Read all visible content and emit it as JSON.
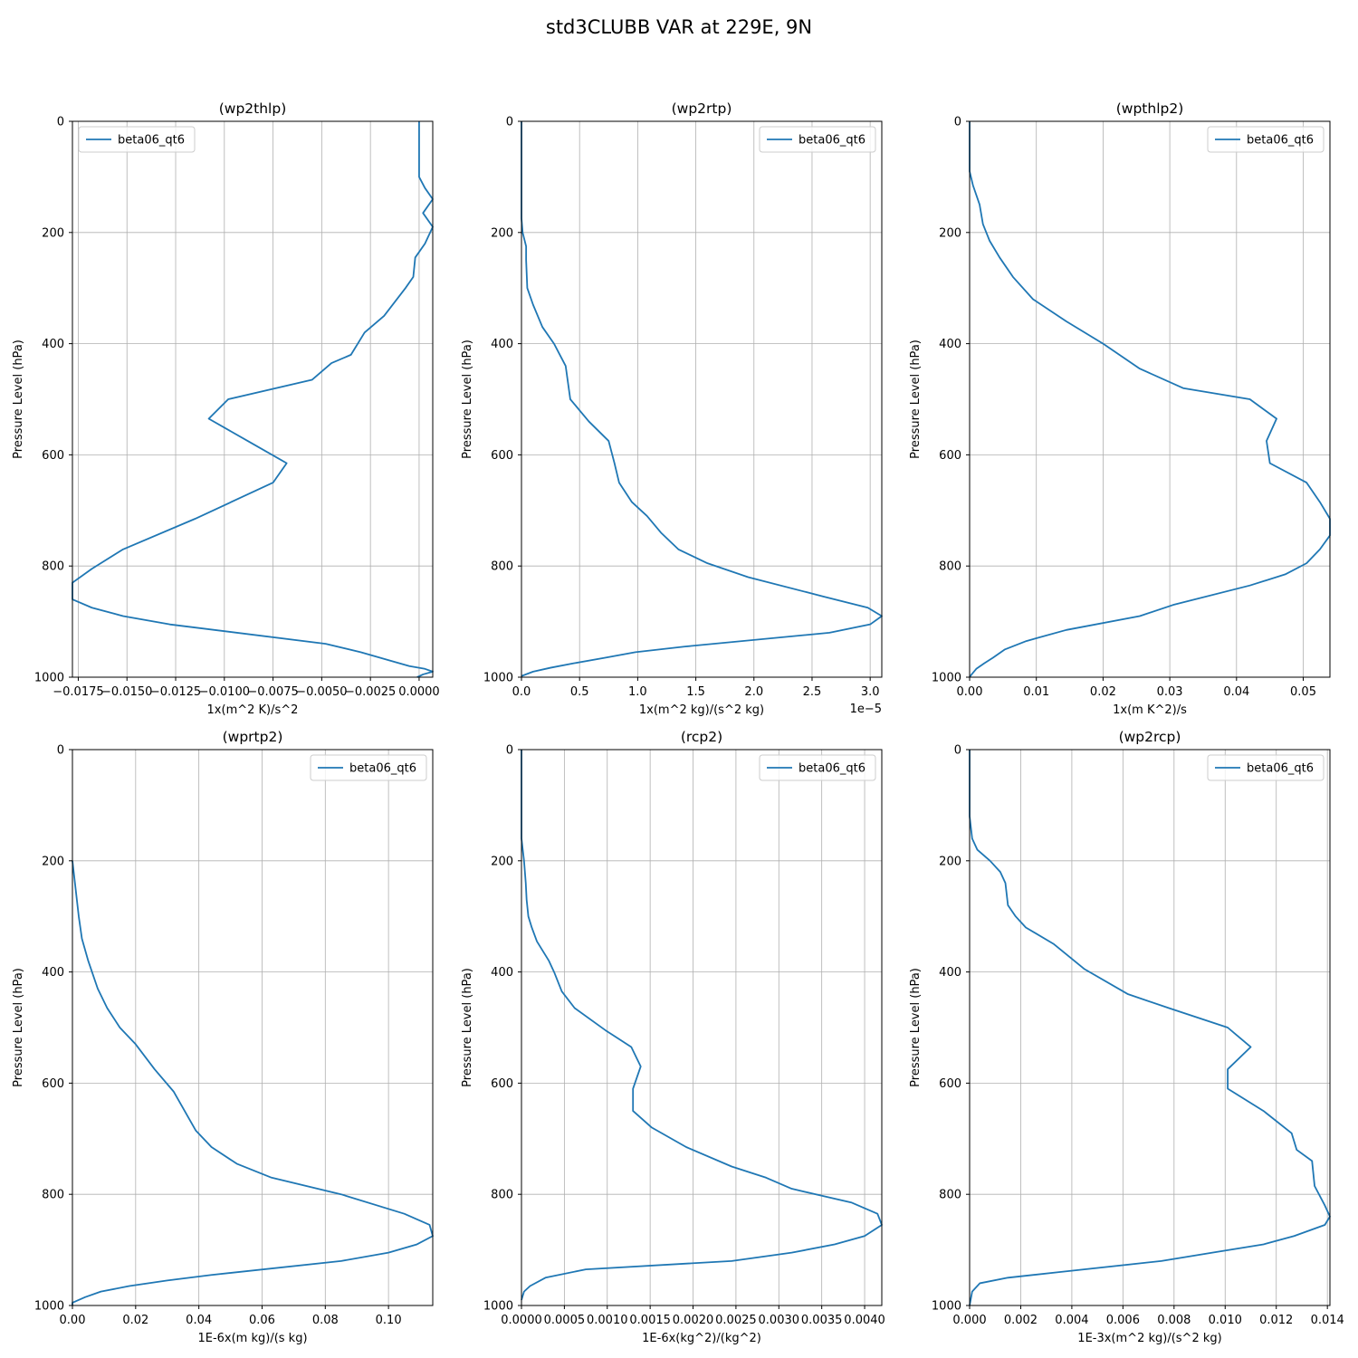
{
  "figure_title": "std3CLUBB VAR at 229E, 9N",
  "colors": {
    "line": "#1f77b4",
    "grid": "#b0b0b0",
    "axes": "#000000"
  },
  "chart_data": [
    {
      "type": "line",
      "title": "(wp2thlp)",
      "xlabel": "1x(m^2 K)/s^2",
      "ylabel": "Pressure Level (hPa)",
      "xlim": [
        -0.0178,
        0.0007
      ],
      "ylim": [
        1000,
        0
      ],
      "xticks": [
        -0.0175,
        -0.015,
        -0.0125,
        -0.01,
        -0.0075,
        -0.005,
        -0.0025,
        0.0
      ],
      "xtick_labels": [
        "−0.0175",
        "−0.0150",
        "−0.0125",
        "−0.0100",
        "−0.0075",
        "−0.0050",
        "−0.0025",
        "0.0000"
      ],
      "yticks": [
        0,
        200,
        400,
        600,
        800,
        1000
      ],
      "ytick_labels": [
        "0",
        "200",
        "400",
        "600",
        "800",
        "1000"
      ],
      "offset_label": "",
      "legend": "upper left",
      "grid": true,
      "series": [
        {
          "name": "beta06_qt6",
          "x": [
            0.0,
            0.0,
            0.0,
            0.0003,
            0.0007,
            0.0002,
            0.0007,
            0.0003,
            -0.0002,
            -0.0003,
            -0.0007,
            -0.0018,
            -0.0028,
            -0.0035,
            -0.0045,
            -0.0055,
            -0.0098,
            -0.0108,
            -0.0088,
            -0.0068,
            -0.0075,
            -0.0115,
            -0.0152,
            -0.0168,
            -0.0178,
            -0.0178,
            -0.0168,
            -0.0152,
            -0.0128,
            -0.0048,
            -0.003,
            -0.0015,
            -0.0005,
            0.0003,
            0.0007,
            0.0002,
            -0.0001
          ],
          "y": [
            0,
            50,
            100,
            120,
            140,
            165,
            190,
            220,
            245,
            280,
            300,
            350,
            380,
            420,
            435,
            465,
            500,
            535,
            575,
            615,
            650,
            715,
            770,
            805,
            830,
            860,
            875,
            890,
            905,
            940,
            955,
            970,
            980,
            985,
            990,
            995,
            1000
          ]
        }
      ]
    },
    {
      "type": "line",
      "title": "(wp2rtp)",
      "xlabel": "1x(m^2 kg)/(s^2 kg)",
      "ylabel": "Pressure Level (hPa)",
      "xlim": [
        0,
        3.1
      ],
      "ylim": [
        1000,
        0
      ],
      "xticks": [
        0,
        0.5,
        1.0,
        1.5,
        2.0,
        2.5,
        3.0
      ],
      "xtick_labels": [
        "0.0",
        "0.5",
        "1.0",
        "1.5",
        "2.0",
        "2.5",
        "3.0"
      ],
      "yticks": [
        0,
        200,
        400,
        600,
        800,
        1000
      ],
      "ytick_labels": [
        "0",
        "200",
        "400",
        "600",
        "800",
        "1000"
      ],
      "offset_label": "1e−5",
      "legend": "upper right",
      "grid": true,
      "series": [
        {
          "name": "beta06_qt6",
          "x": [
            0.0,
            0.0,
            0.0,
            0.01,
            0.04,
            0.04,
            0.05,
            0.1,
            0.18,
            0.28,
            0.38,
            0.42,
            0.58,
            0.75,
            0.8,
            0.84,
            0.95,
            1.08,
            1.2,
            1.35,
            1.6,
            1.95,
            2.6,
            2.98,
            3.1,
            3.0,
            2.65,
            1.4,
            0.98,
            0.72,
            0.45,
            0.25,
            0.1,
            0.0
          ],
          "y": [
            0,
            100,
            175,
            200,
            225,
            250,
            300,
            330,
            370,
            400,
            440,
            500,
            540,
            575,
            615,
            650,
            685,
            710,
            740,
            770,
            795,
            820,
            855,
            875,
            890,
            905,
            920,
            945,
            955,
            965,
            975,
            983,
            990,
            998
          ]
        }
      ]
    },
    {
      "type": "line",
      "title": "(wpthlp2)",
      "xlabel": "1x(m K^2)/s",
      "ylabel": "Pressure Level (hPa)",
      "xlim": [
        0,
        0.054
      ],
      "ylim": [
        1000,
        0
      ],
      "xticks": [
        0,
        0.01,
        0.02,
        0.03,
        0.04,
        0.05
      ],
      "xtick_labels": [
        "0.00",
        "0.01",
        "0.02",
        "0.03",
        "0.04",
        "0.05"
      ],
      "yticks": [
        0,
        200,
        400,
        600,
        800,
        1000
      ],
      "ytick_labels": [
        "0",
        "200",
        "400",
        "600",
        "800",
        "1000"
      ],
      "offset_label": "",
      "legend": "upper right",
      "grid": true,
      "series": [
        {
          "name": "beta06_qt6",
          "x": [
            0.0,
            0.0,
            0.0005,
            0.0015,
            0.002,
            0.003,
            0.0045,
            0.0065,
            0.0095,
            0.0145,
            0.02,
            0.0255,
            0.032,
            0.042,
            0.046,
            0.0445,
            0.045,
            0.0505,
            0.0525,
            0.054,
            0.054,
            0.0525,
            0.0505,
            0.0473,
            0.042,
            0.0305,
            0.0255,
            0.0145,
            0.0085,
            0.0053,
            0.0035,
            0.0022,
            0.001,
            0.0003,
            0.0
          ],
          "y": [
            0,
            90,
            115,
            150,
            185,
            215,
            245,
            280,
            320,
            360,
            400,
            445,
            480,
            500,
            535,
            575,
            615,
            650,
            685,
            715,
            745,
            770,
            795,
            815,
            835,
            870,
            890,
            915,
            935,
            950,
            965,
            975,
            985,
            995,
            1000
          ]
        }
      ]
    },
    {
      "type": "line",
      "title": "(wprtp2)",
      "xlabel": "1E-6x(m kg)/(s kg)",
      "ylabel": "Pressure Level (hPa)",
      "xlim": [
        0,
        0.114
      ],
      "ylim": [
        1000,
        0
      ],
      "xticks": [
        0,
        0.02,
        0.04,
        0.06,
        0.08,
        0.1
      ],
      "xtick_labels": [
        "0.00",
        "0.02",
        "0.04",
        "0.06",
        "0.08",
        "0.10"
      ],
      "yticks": [
        0,
        200,
        400,
        600,
        800,
        1000
      ],
      "ytick_labels": [
        "0",
        "200",
        "400",
        "600",
        "800",
        "1000"
      ],
      "offset_label": "",
      "legend": "upper right",
      "grid": true,
      "series": [
        {
          "name": "beta06_qt6",
          "x": [
            0.0,
            0.001,
            0.002,
            0.003,
            0.005,
            0.008,
            0.011,
            0.015,
            0.02,
            0.026,
            0.032,
            0.039,
            0.044,
            0.052,
            0.063,
            0.085,
            0.105,
            0.113,
            0.114,
            0.109,
            0.1,
            0.085,
            0.044,
            0.03,
            0.018,
            0.009,
            0.004,
            0.0,
            0.0
          ],
          "y": [
            200,
            250,
            300,
            340,
            380,
            430,
            465,
            500,
            530,
            575,
            615,
            685,
            715,
            745,
            770,
            800,
            835,
            855,
            875,
            890,
            905,
            920,
            945,
            955,
            965,
            975,
            985,
            995,
            1000
          ]
        }
      ]
    },
    {
      "type": "line",
      "title": "(rcp2)",
      "xlabel": "1E-6x(kg^2)/(kg^2)",
      "ylabel": "Pressure Level (hPa)",
      "xlim": [
        0,
        0.0042
      ],
      "ylim": [
        1000,
        0
      ],
      "xticks": [
        0,
        0.0005,
        0.001,
        0.0015,
        0.002,
        0.0025,
        0.003,
        0.0035,
        0.004
      ],
      "xtick_labels": [
        "0.0000",
        "0.0005",
        "0.0010",
        "0.0015",
        "0.0020",
        "0.0025",
        "0.0030",
        "0.0035",
        "0.0040"
      ],
      "yticks": [
        0,
        200,
        400,
        600,
        800,
        1000
      ],
      "ytick_labels": [
        "0",
        "200",
        "400",
        "600",
        "800",
        "1000"
      ],
      "offset_label": "",
      "legend": "upper right",
      "grid": true,
      "series": [
        {
          "name": "beta06_qt6",
          "x": [
            0.0,
            0.0,
            0.0,
            3e-05,
            5e-05,
            6e-05,
            8e-05,
            0.00012,
            0.00018,
            0.00032,
            0.00038,
            0.00047,
            0.00062,
            0.00098,
            0.00128,
            0.00139,
            0.0013,
            0.0013,
            0.00152,
            0.00192,
            0.00245,
            0.00285,
            0.00315,
            0.00385,
            0.00415,
            0.0042,
            0.004,
            0.00365,
            0.00315,
            0.00245,
            0.00075,
            0.00028,
            0.0001,
            3e-05,
            0.0
          ],
          "y": [
            0,
            100,
            160,
            200,
            240,
            270,
            300,
            320,
            345,
            380,
            400,
            435,
            465,
            505,
            535,
            570,
            610,
            650,
            680,
            715,
            750,
            770,
            790,
            815,
            835,
            855,
            875,
            890,
            905,
            920,
            935,
            950,
            965,
            975,
            990
          ]
        }
      ]
    },
    {
      "type": "line",
      "title": "(wp2rcp)",
      "xlabel": "1E-3x(m^2 kg)/(s^2 kg)",
      "ylabel": "Pressure Level (hPa)",
      "xlim": [
        0,
        0.0141
      ],
      "ylim": [
        1000,
        0
      ],
      "xticks": [
        0,
        0.002,
        0.004,
        0.006,
        0.008,
        0.01,
        0.012,
        0.014
      ],
      "xtick_labels": [
        "0.000",
        "0.002",
        "0.004",
        "0.006",
        "0.008",
        "0.010",
        "0.012",
        "0.014"
      ],
      "yticks": [
        0,
        200,
        400,
        600,
        800,
        1000
      ],
      "ytick_labels": [
        "0",
        "200",
        "400",
        "600",
        "800",
        "1000"
      ],
      "offset_label": "",
      "legend": "upper right",
      "grid": true,
      "series": [
        {
          "name": "beta06_qt6",
          "x": [
            0.0,
            0.0,
            0.0001,
            0.0003,
            0.0008,
            0.0012,
            0.0014,
            0.0015,
            0.0018,
            0.0022,
            0.0033,
            0.0045,
            0.0062,
            0.0078,
            0.0101,
            0.011,
            0.0101,
            0.0101,
            0.0115,
            0.0126,
            0.0128,
            0.0134,
            0.0135,
            0.0139,
            0.0141,
            0.0139,
            0.0127,
            0.0115,
            0.0095,
            0.0075,
            0.0035,
            0.0015,
            0.0004,
            0.0001,
            0.0
          ],
          "y": [
            0,
            120,
            160,
            180,
            200,
            220,
            240,
            280,
            300,
            320,
            350,
            395,
            440,
            465,
            500,
            535,
            575,
            610,
            650,
            690,
            720,
            740,
            785,
            820,
            840,
            855,
            875,
            890,
            905,
            920,
            940,
            950,
            960,
            975,
            1000
          ]
        }
      ]
    }
  ]
}
